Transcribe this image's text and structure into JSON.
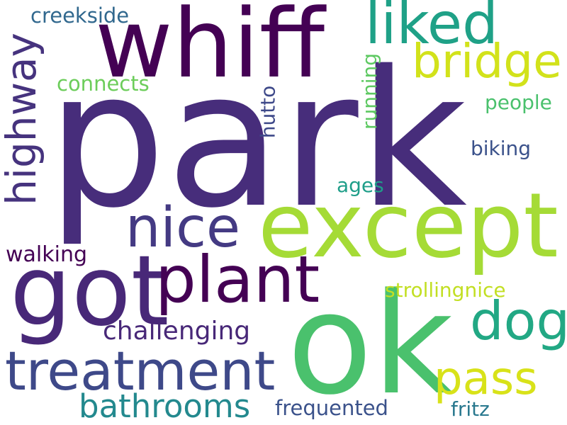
{
  "words": {
    "park": {
      "text": "park",
      "color": "#472d7b"
    },
    "whiff": {
      "text": "whiff",
      "color": "#440154"
    },
    "except": {
      "text": "except",
      "color": "#a5db36"
    },
    "ok": {
      "text": "ok",
      "color": "#4ac16d"
    },
    "got": {
      "text": "got",
      "color": "#482878"
    },
    "plant": {
      "text": "plant",
      "color": "#440154"
    },
    "treatment": {
      "text": "treatment",
      "color": "#3e4989"
    },
    "nice": {
      "text": "nice",
      "color": "#443a83"
    },
    "liked": {
      "text": "liked",
      "color": "#1fa187"
    },
    "bridge": {
      "text": "bridge",
      "color": "#d2e21b"
    },
    "highway": {
      "text": "highway",
      "color": "#46337e"
    },
    "dog": {
      "text": "dog",
      "color": "#22a884"
    },
    "pass": {
      "text": "pass",
      "color": "#d8e219"
    },
    "bathrooms": {
      "text": "bathrooms",
      "color": "#23898e"
    },
    "challenging": {
      "text": "challenging",
      "color": "#482878"
    },
    "frequented": {
      "text": "frequented",
      "color": "#3b528b"
    },
    "strollingnice": {
      "text": "strollingnice",
      "color": "#c2df23"
    },
    "walking": {
      "text": "walking",
      "color": "#440154"
    },
    "creekside": {
      "text": "creekside",
      "color": "#31688e"
    },
    "connects": {
      "text": "connects",
      "color": "#6ccd5a"
    },
    "people": {
      "text": "people",
      "color": "#4ac16d"
    },
    "biking": {
      "text": "biking",
      "color": "#3b528b"
    },
    "ages": {
      "text": "ages",
      "color": "#1f9e89"
    },
    "running": {
      "text": "running",
      "color": "#5ec962"
    },
    "hutto": {
      "text": "hutto",
      "color": "#3e4989"
    },
    "fritz": {
      "text": "fritz",
      "color": "#29788e"
    }
  }
}
